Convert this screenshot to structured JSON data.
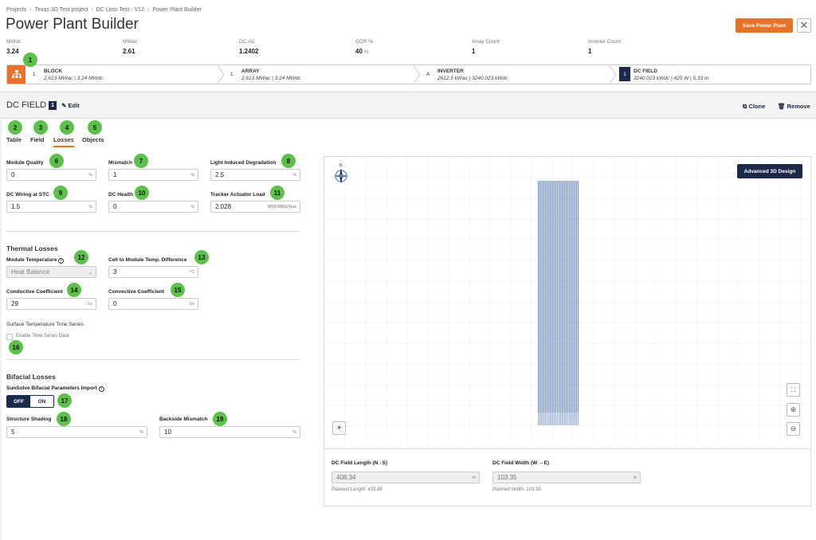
{
  "breadcrumb": [
    "Projects",
    "Texas 3D Test project",
    "DC Loss Test - V12",
    "Power Plant Builder"
  ],
  "page_title": "Power Plant Builder",
  "save_label": "Save Power Plant",
  "close_label": "✕",
  "stats": [
    {
      "label": "MWdc",
      "value": "3.24",
      "unit": ""
    },
    {
      "label": "MWac",
      "value": "2.61",
      "unit": ""
    },
    {
      "label": "DC:AC",
      "value": "1.2402",
      "unit": ""
    },
    {
      "label": "GCR %",
      "value": "40",
      "unit": "%"
    },
    {
      "label": "Array Count",
      "value": "1",
      "unit": ""
    },
    {
      "label": "Inverter Count",
      "value": "1",
      "unit": ""
    }
  ],
  "flow": [
    {
      "num": "1",
      "title": "BLOCK",
      "sub": "2.613 MWac | 3.24 MWdc"
    },
    {
      "num": "1",
      "title": "ARRAY",
      "sub": "2.613 MWac | 3.24 MWdc"
    },
    {
      "num": "A",
      "title": "INVERTER",
      "sub": "2612.5 kWac | 3240.023 kWdc"
    },
    {
      "num": "1",
      "title": "DC FIELD",
      "sub": "3240.023 kWdc | 425 W | 5.33 m"
    }
  ],
  "section_header": {
    "title": "DC FIELD",
    "badge": "1",
    "edit": "Edit",
    "clone": "Clone",
    "remove": "Remove"
  },
  "tabs": [
    "Table",
    "Field",
    "Losses",
    "Objects"
  ],
  "losses": {
    "module_quality": {
      "label": "Module Quality",
      "value": "0",
      "unit": "%"
    },
    "mismatch": {
      "label": "Mismatch",
      "value": "1",
      "unit": "%"
    },
    "lid": {
      "label": "Light Induced Degradation",
      "value": "2.5",
      "unit": "%"
    },
    "dc_wiring": {
      "label": "DC Wiring at STC",
      "value": "1.5",
      "unit": "%"
    },
    "dc_health": {
      "label": "DC Health",
      "value": "0",
      "unit": "%"
    },
    "tracker_load": {
      "label": "Tracker Actuator Load",
      "value": "2.028",
      "unit": "MWh/MWp/Year"
    }
  },
  "thermal": {
    "title": "Thermal Losses",
    "module_temp": {
      "label": "Module Temperature",
      "value": "Heat Balance"
    },
    "cell_diff": {
      "label": "Cell to Module Temp. Difference",
      "value": "3",
      "unit": "°C"
    },
    "conductive": {
      "label": "Conductive Coefficient",
      "value": "29",
      "unit": "Uc"
    },
    "convective": {
      "label": "Convective Coefficient",
      "value": "0",
      "unit": "Uv"
    },
    "surface_label": "Surface Temperature Time Series",
    "enable_ts": "Enable Time Series Data"
  },
  "bifacial": {
    "title": "Bifacial Losses",
    "import_label": "SunSolve Bifacial Parameters Import",
    "toggle_off": "OFF",
    "toggle_on": "ON",
    "structure_shading": {
      "label": "Structure Shading",
      "value": "5",
      "unit": "%"
    },
    "backside_mismatch": {
      "label": "Backside Mismatch",
      "value": "10",
      "unit": "%"
    }
  },
  "map": {
    "adv_label": "Advanced 3D Design",
    "length_label": "DC Field Length (N ↕S)",
    "length_value": "408.34",
    "length_unit": "m",
    "planned_length": "Planned Length: 433.86",
    "width_label": "DC Field Width (W ↔E)",
    "width_value": "103.35",
    "width_unit": "m",
    "planned_width": "Planned Width: 103.35",
    "row_count": 24
  },
  "callouts": [
    "1",
    "2",
    "3",
    "4",
    "5",
    "6",
    "7",
    "8",
    "9",
    "10",
    "11",
    "12",
    "13",
    "14",
    "15",
    "16",
    "17",
    "18",
    "19"
  ],
  "colors": {
    "accent": "#e8722a",
    "navy": "#1b2a4a",
    "callout": "#5dc04a",
    "row": "#5b7fb5"
  }
}
